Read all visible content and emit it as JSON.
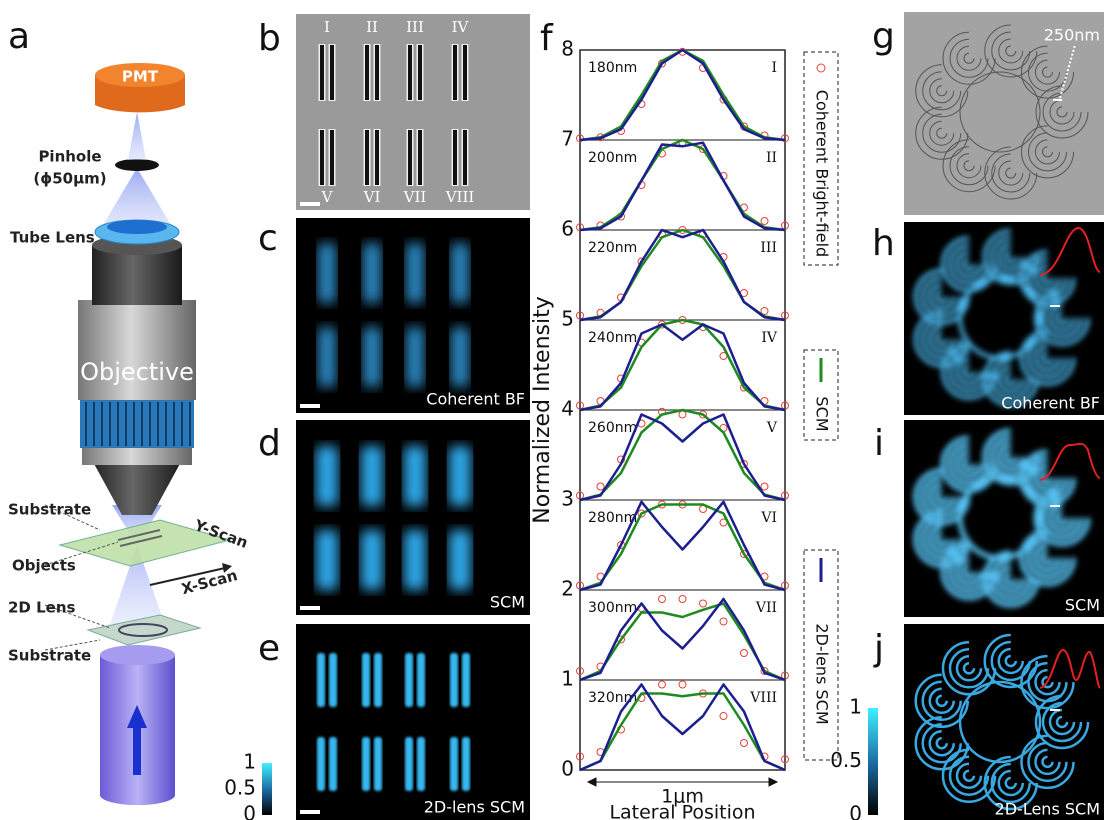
{
  "panel_labels": [
    "a",
    "b",
    "c",
    "d",
    "e",
    "f",
    "g",
    "h",
    "i",
    "j"
  ],
  "schematic": {
    "pmt": "PMT",
    "pinhole": "Pinhole",
    "pinhole_size": "(ϕ50μm)",
    "tube_lens": "Tube Lens",
    "objective": "Objective",
    "substrate_top": "Substrate",
    "y_scan": "Y-Scan",
    "objects": "Objects",
    "x_scan": "X-Scan",
    "lens_2d": "2D Lens",
    "substrate_bottom": "Substrate"
  },
  "sem_numerals": [
    "I",
    "II",
    "III",
    "IV",
    "V",
    "VI",
    "VII",
    "VIII"
  ],
  "image_captions": {
    "c": "Coherent BF",
    "d": "SCM",
    "e": "2D-lens SCM",
    "g": "250nm",
    "h": "Coherent BF",
    "i": "SCM",
    "j": "2D-Lens SCM"
  },
  "colorbar": {
    "lim": [
      0,
      1
    ],
    "ticks": [
      0,
      0.5,
      1
    ]
  },
  "chart_data": {
    "type": "line",
    "ylabel": "Normalized Intensity",
    "xlabel": "Lateral Position",
    "x_span_label": "1μm",
    "xlim": [
      0,
      1
    ],
    "x": [
      0,
      0.1,
      0.2,
      0.3,
      0.4,
      0.5,
      0.6,
      0.7,
      0.8,
      0.9,
      1
    ],
    "ylim": [
      0,
      8
    ],
    "yticks": [
      0,
      1,
      2,
      3,
      4,
      5,
      6,
      7,
      8
    ],
    "grid": true,
    "profiles": [
      {
        "size": "180nm",
        "numeral": "I"
      },
      {
        "size": "200nm",
        "numeral": "II"
      },
      {
        "size": "220nm",
        "numeral": "III"
      },
      {
        "size": "240nm",
        "numeral": "IV"
      },
      {
        "size": "260nm",
        "numeral": "V"
      },
      {
        "size": "280nm",
        "numeral": "VI"
      },
      {
        "size": "300nm",
        "numeral": "VII"
      },
      {
        "size": "320nm",
        "numeral": "VIII"
      }
    ],
    "series": [
      {
        "name": "Coherent Bright-field",
        "color": "#e8403a",
        "style": "markers",
        "values": [
          [
            7.02,
            7.03,
            7.1,
            7.4,
            7.85,
            7.98,
            7.8,
            7.45,
            7.15,
            7.05,
            7.02
          ],
          [
            6.03,
            6.05,
            6.15,
            6.5,
            6.85,
            6.97,
            6.9,
            6.6,
            6.25,
            6.1,
            6.05
          ],
          [
            5.05,
            5.08,
            5.25,
            5.65,
            5.95,
            6,
            5.95,
            5.7,
            5.3,
            5.1,
            5.05
          ],
          [
            4.05,
            4.1,
            4.35,
            4.75,
            4.95,
            5,
            4.92,
            4.6,
            4.25,
            4.1,
            4.05
          ],
          [
            3.05,
            3.15,
            3.45,
            3.85,
            3.98,
            3.95,
            3.95,
            3.8,
            3.4,
            3.15,
            3.05
          ],
          [
            2.05,
            2.15,
            2.5,
            2.85,
            2.95,
            2.95,
            2.9,
            2.75,
            2.4,
            2.15,
            2.05
          ],
          [
            1.1,
            1.15,
            1.45,
            1.8,
            1.9,
            1.9,
            1.85,
            1.65,
            1.3,
            1.1,
            1.05
          ],
          [
            0.15,
            0.2,
            0.45,
            0.8,
            0.95,
            0.95,
            0.85,
            0.6,
            0.3,
            0.15,
            0.12
          ]
        ]
      },
      {
        "name": "SCM",
        "color": "#1f8a1f",
        "style": "line",
        "values": [
          [
            7,
            7.03,
            7.15,
            7.5,
            7.88,
            8,
            7.88,
            7.5,
            7.15,
            7.03,
            7
          ],
          [
            6,
            6.03,
            6.18,
            6.55,
            6.9,
            7,
            6.9,
            6.55,
            6.18,
            6.03,
            6
          ],
          [
            5,
            5.04,
            5.2,
            5.6,
            5.92,
            6,
            5.92,
            5.6,
            5.2,
            5.04,
            5
          ],
          [
            4,
            4.05,
            4.25,
            4.7,
            4.95,
            5,
            4.95,
            4.7,
            4.25,
            4.05,
            4
          ],
          [
            3,
            3.06,
            3.3,
            3.75,
            3.95,
            4,
            3.95,
            3.75,
            3.3,
            3.06,
            3
          ],
          [
            2,
            2.08,
            2.4,
            2.85,
            2.95,
            2.95,
            2.95,
            2.85,
            2.4,
            2.08,
            2
          ],
          [
            1,
            1.1,
            1.45,
            1.75,
            1.75,
            1.7,
            1.78,
            1.85,
            1.5,
            1.1,
            1
          ],
          [
            0,
            0.1,
            0.5,
            0.85,
            0.85,
            0.82,
            0.85,
            0.85,
            0.5,
            0.1,
            0
          ]
        ]
      },
      {
        "name": "2D-lens SCM",
        "color": "#1c1f8f",
        "style": "line",
        "values": [
          [
            7,
            7.02,
            7.12,
            7.45,
            7.85,
            8,
            7.85,
            7.45,
            7.12,
            7.02,
            7
          ],
          [
            6,
            6.02,
            6.15,
            6.55,
            6.95,
            6.93,
            6.97,
            6.55,
            6.15,
            6.02,
            6
          ],
          [
            5,
            5.03,
            5.2,
            5.65,
            6,
            5.92,
            6,
            5.65,
            5.2,
            5.03,
            5
          ],
          [
            4,
            4.04,
            4.3,
            4.85,
            4.95,
            4.78,
            4.95,
            4.85,
            4.3,
            4.04,
            4
          ],
          [
            3,
            3.05,
            3.4,
            3.95,
            3.85,
            3.65,
            3.85,
            3.95,
            3.4,
            3.05,
            3
          ],
          [
            2,
            2.06,
            2.5,
            2.98,
            2.7,
            2.45,
            2.7,
            2.98,
            2.5,
            2.06,
            2
          ],
          [
            1,
            1.08,
            1.55,
            1.85,
            1.55,
            1.35,
            1.6,
            1.9,
            1.55,
            1.08,
            1
          ],
          [
            0,
            0.1,
            0.65,
            0.95,
            0.6,
            0.4,
            0.6,
            0.95,
            0.65,
            0.1,
            0
          ]
        ]
      }
    ]
  }
}
